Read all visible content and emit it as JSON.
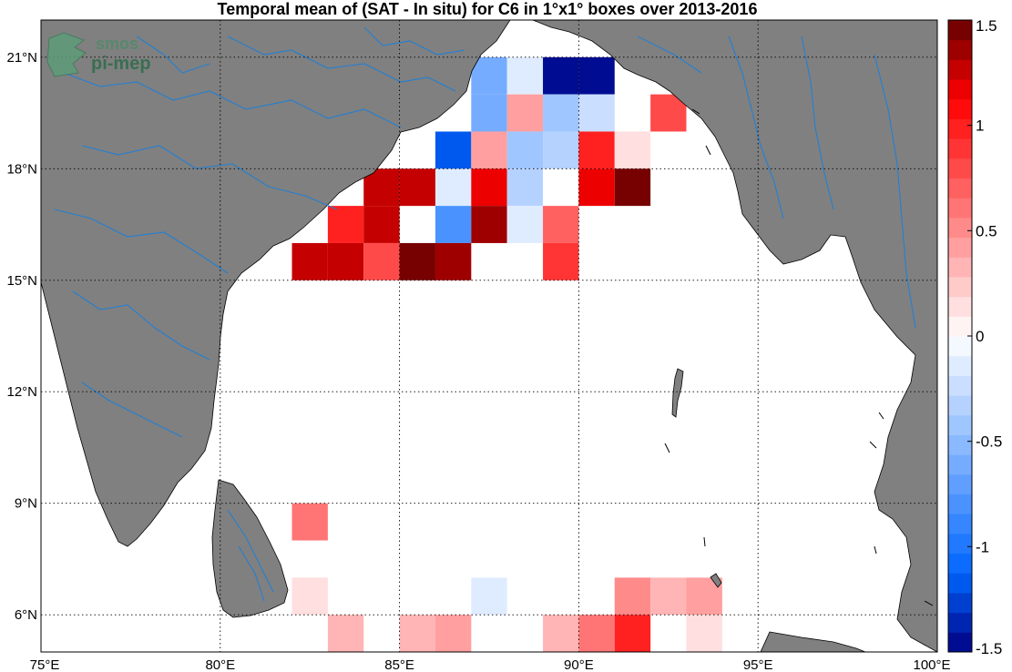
{
  "map": {
    "title": "Temporal mean of (SAT - In situ) for C6 in 1°x1° boxes over 2013-2016",
    "logo_text_top": "smos",
    "logo_text_bottom": "pi-mep",
    "extent": {
      "lon": [
        75,
        100
      ],
      "lat": [
        5,
        22
      ]
    },
    "lon_ticks": [
      {
        "value": 75,
        "label": "75°E"
      },
      {
        "value": 80,
        "label": "80°E"
      },
      {
        "value": 85,
        "label": "85°E"
      },
      {
        "value": 90,
        "label": "90°E"
      },
      {
        "value": 95,
        "label": "95°E"
      },
      {
        "value": 100,
        "label": "100°E"
      }
    ],
    "lat_ticks": [
      {
        "value": 6,
        "label": "6°N"
      },
      {
        "value": 9,
        "label": "9°N"
      },
      {
        "value": 12,
        "label": "12°N"
      },
      {
        "value": 15,
        "label": "15°N"
      },
      {
        "value": 18,
        "label": "18°N"
      },
      {
        "value": 21,
        "label": "21°N"
      }
    ],
    "colors": {
      "land": "#808080",
      "coast": "#000000",
      "rivers": "#1f7fd6",
      "grid": "#000000",
      "logo": "#2e7d4f"
    }
  },
  "colorbar": {
    "range": [
      -1.5,
      1.5
    ],
    "levels": 32,
    "ticks": [
      {
        "value": 1.5,
        "label": "1.5"
      },
      {
        "value": 1,
        "label": "1"
      },
      {
        "value": 0.5,
        "label": "0.5"
      },
      {
        "value": 0,
        "label": "0"
      },
      {
        "value": -0.5,
        "label": "-0.5"
      },
      {
        "value": -1,
        "label": "-1"
      },
      {
        "value": -1.5,
        "label": "-1.5"
      }
    ]
  },
  "chart_data": {
    "type": "heatmap",
    "title": "Temporal mean of (SAT - In situ) for C6 in 1°x1° boxes over 2013-2016",
    "x_unit": "°E",
    "y_unit": "°N",
    "value_range": [
      -1.5,
      1.5
    ],
    "cells": [
      {
        "lon": 87,
        "lat": 20,
        "value": -0.6
      },
      {
        "lon": 88,
        "lat": 20,
        "value": -0.15
      },
      {
        "lon": 89,
        "lat": 20,
        "value": -1.5
      },
      {
        "lon": 90,
        "lat": 20,
        "value": -1.5
      },
      {
        "lon": 87,
        "lat": 19,
        "value": -0.6
      },
      {
        "lon": 88,
        "lat": 19,
        "value": 0.4
      },
      {
        "lon": 89,
        "lat": 19,
        "value": -0.4
      },
      {
        "lon": 90,
        "lat": 19,
        "value": -0.25
      },
      {
        "lon": 92,
        "lat": 19,
        "value": 0.75
      },
      {
        "lon": 86,
        "lat": 18,
        "value": -1.2
      },
      {
        "lon": 87,
        "lat": 18,
        "value": 0.45
      },
      {
        "lon": 88,
        "lat": 18,
        "value": -0.4
      },
      {
        "lon": 89,
        "lat": 18,
        "value": -0.3
      },
      {
        "lon": 90,
        "lat": 18,
        "value": 1.0
      },
      {
        "lon": 91,
        "lat": 18,
        "value": 0.15
      },
      {
        "lon": 84,
        "lat": 17,
        "value": 1.25
      },
      {
        "lon": 85,
        "lat": 17,
        "value": 1.25
      },
      {
        "lon": 86,
        "lat": 17,
        "value": -0.15
      },
      {
        "lon": 87,
        "lat": 17,
        "value": 1.2
      },
      {
        "lon": 88,
        "lat": 17,
        "value": -0.3
      },
      {
        "lon": 90,
        "lat": 17,
        "value": 1.2
      },
      {
        "lon": 91,
        "lat": 17,
        "value": 1.45
      },
      {
        "lon": 83,
        "lat": 16,
        "value": 1.0
      },
      {
        "lon": 84,
        "lat": 16,
        "value": 1.3
      },
      {
        "lon": 86,
        "lat": 16,
        "value": -0.8
      },
      {
        "lon": 87,
        "lat": 16,
        "value": 1.35
      },
      {
        "lon": 88,
        "lat": 16,
        "value": -0.15
      },
      {
        "lon": 89,
        "lat": 16,
        "value": 0.7
      },
      {
        "lon": 82,
        "lat": 15,
        "value": 1.25
      },
      {
        "lon": 83,
        "lat": 15,
        "value": 1.3
      },
      {
        "lon": 84,
        "lat": 15,
        "value": 0.8
      },
      {
        "lon": 85,
        "lat": 15,
        "value": 1.45
      },
      {
        "lon": 86,
        "lat": 15,
        "value": 1.35
      },
      {
        "lon": 89,
        "lat": 15,
        "value": 0.9
      },
      {
        "lon": 82,
        "lat": 8,
        "value": 0.65
      },
      {
        "lon": 82,
        "lat": 6,
        "value": 0.1
      },
      {
        "lon": 87,
        "lat": 6,
        "value": -0.15
      },
      {
        "lon": 91,
        "lat": 6,
        "value": 0.5
      },
      {
        "lon": 92,
        "lat": 6,
        "value": 0.35
      },
      {
        "lon": 93,
        "lat": 6,
        "value": 0.45
      },
      {
        "lon": 83,
        "lat": 5,
        "value": 0.3
      },
      {
        "lon": 85,
        "lat": 5,
        "value": 0.3
      },
      {
        "lon": 86,
        "lat": 5,
        "value": 0.45
      },
      {
        "lon": 89,
        "lat": 5,
        "value": 0.3
      },
      {
        "lon": 90,
        "lat": 5,
        "value": 0.65
      },
      {
        "lon": 91,
        "lat": 5,
        "value": 0.95
      },
      {
        "lon": 93,
        "lat": 5,
        "value": 0.15
      }
    ]
  }
}
